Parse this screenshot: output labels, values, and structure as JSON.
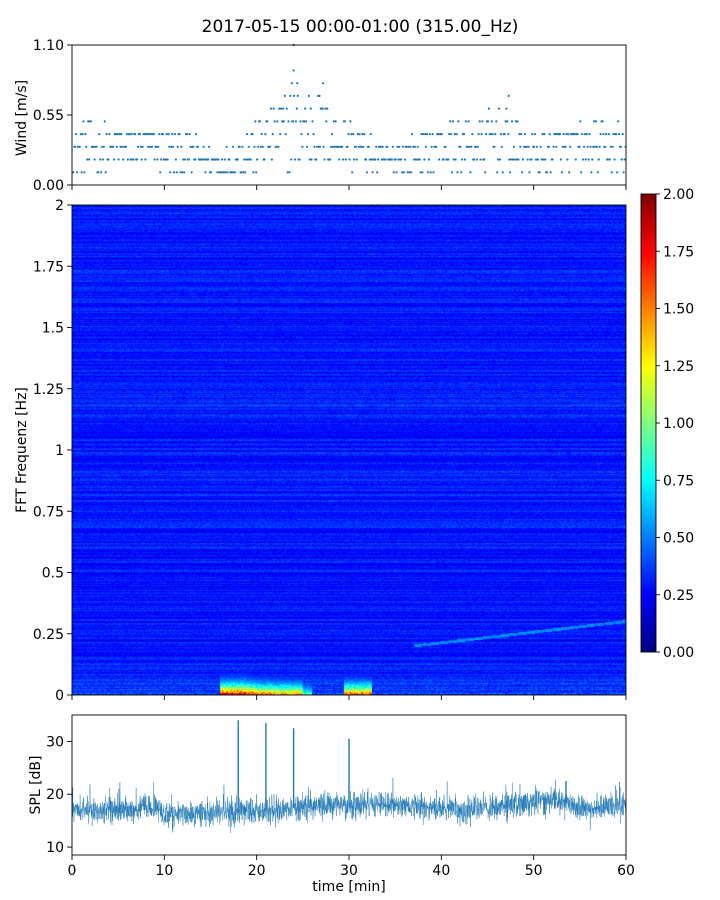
{
  "figure_title": "2017-05-15 00:00-01:00 (315.00_Hz)",
  "chart_data": [
    {
      "type": "scatter",
      "panel": "wind",
      "ylabel": "Wind [m/s]",
      "xlabel": "",
      "xlim": [
        0,
        60
      ],
      "ylim": [
        0,
        1.1
      ],
      "yticks": [
        0.0,
        0.55,
        1.1
      ],
      "ytick_labels": [
        "0.00",
        "0.55",
        "1.10"
      ],
      "xticks": [
        0,
        10,
        20,
        30,
        40,
        50,
        60
      ],
      "quantization": 0.1,
      "point_spacing_min": 0.1,
      "color": "#1f77b4",
      "wind_profile": [
        {
          "x": 0,
          "mean": 0.28,
          "spread": 0.2
        },
        {
          "x": 5,
          "mean": 0.28,
          "spread": 0.18
        },
        {
          "x": 9,
          "mean": 0.3,
          "spread": 0.18
        },
        {
          "x": 11,
          "mean": 0.25,
          "spread": 0.18
        },
        {
          "x": 14,
          "mean": 0.22,
          "spread": 0.12
        },
        {
          "x": 16,
          "mean": 0.15,
          "spread": 0.08
        },
        {
          "x": 18,
          "mean": 0.22,
          "spread": 0.15
        },
        {
          "x": 20,
          "mean": 0.3,
          "spread": 0.2
        },
        {
          "x": 22,
          "mean": 0.38,
          "spread": 0.28
        },
        {
          "x": 24,
          "mean": 0.45,
          "spread": 0.35
        },
        {
          "x": 26,
          "mean": 0.45,
          "spread": 0.32
        },
        {
          "x": 28,
          "mean": 0.38,
          "spread": 0.25
        },
        {
          "x": 31,
          "mean": 0.3,
          "spread": 0.18
        },
        {
          "x": 33,
          "mean": 0.2,
          "spread": 0.1
        },
        {
          "x": 36,
          "mean": 0.22,
          "spread": 0.12
        },
        {
          "x": 40,
          "mean": 0.3,
          "spread": 0.2
        },
        {
          "x": 44,
          "mean": 0.3,
          "spread": 0.22
        },
        {
          "x": 46,
          "mean": 0.4,
          "spread": 0.28
        },
        {
          "x": 48,
          "mean": 0.3,
          "spread": 0.2
        },
        {
          "x": 50,
          "mean": 0.25,
          "spread": 0.15
        },
        {
          "x": 55,
          "mean": 0.28,
          "spread": 0.18
        },
        {
          "x": 60,
          "mean": 0.3,
          "spread": 0.22
        }
      ],
      "wind_peaks": [
        {
          "x": 24.0,
          "y": 1.1
        },
        {
          "x": 24.0,
          "y": 0.9
        },
        {
          "x": 23.8,
          "y": 0.8
        },
        {
          "x": 24.4,
          "y": 0.8
        },
        {
          "x": 26.8,
          "y": 0.7
        },
        {
          "x": 27.2,
          "y": 0.8
        },
        {
          "x": 47.3,
          "y": 0.7
        }
      ]
    },
    {
      "type": "heatmap",
      "panel": "spectrogram",
      "ylabel": "FFT Frequenz [Hz]",
      "xlabel": "",
      "xlim": [
        0,
        60
      ],
      "ylim": [
        0,
        2
      ],
      "yticks": [
        0,
        0.25,
        0.5,
        0.75,
        1,
        1.25,
        1.5,
        1.75,
        2
      ],
      "ytick_labels": [
        "0",
        "0.25",
        "0.5",
        "0.75",
        "1",
        "1.25",
        "1.5",
        "1.75",
        "2"
      ],
      "colormap": "jet",
      "clim": [
        0,
        2
      ],
      "colorbar_ticks": [
        "0.00",
        "0.25",
        "0.50",
        "0.75",
        "1.00",
        "1.25",
        "1.50",
        "1.75",
        "2.00"
      ],
      "background_value": 0.28,
      "hot_region": {
        "x_start": 16,
        "x_end": 32.5,
        "freq_max": 0.3
      },
      "hot_columns": [
        {
          "x_start": 16.0,
          "x_end": 18.8,
          "peak": 2.0
        },
        {
          "x_start": 18.8,
          "x_end": 19.8,
          "peak": 1.9
        },
        {
          "x_start": 19.8,
          "x_end": 21.5,
          "peak": 1.7
        },
        {
          "x_start": 21.5,
          "x_end": 23.0,
          "peak": 1.6
        },
        {
          "x_start": 23.0,
          "x_end": 25.0,
          "peak": 1.6
        },
        {
          "x_start": 25.0,
          "x_end": 26.0,
          "peak": 1.0
        },
        {
          "x_start": 26.0,
          "x_end": 28.0,
          "peak": 0.35
        },
        {
          "x_start": 28.0,
          "x_end": 29.5,
          "peak": 0.4
        },
        {
          "x_start": 29.5,
          "x_end": 32.5,
          "peak": 1.75
        }
      ],
      "line_feature": {
        "x_start": 37,
        "x_end": 60,
        "f_start": 0.2,
        "f_end": 0.3,
        "value": 0.55
      }
    },
    {
      "type": "line",
      "panel": "spl",
      "ylabel": "SPL [dB]",
      "xlabel": "time [min]",
      "xlim": [
        0,
        60
      ],
      "ylim": [
        8.5,
        35
      ],
      "yticks": [
        10,
        20,
        30
      ],
      "ytick_labels": [
        "10",
        "20",
        "30"
      ],
      "xticks": [
        0,
        10,
        20,
        30,
        40,
        50,
        60
      ],
      "xtick_labels": [
        "0",
        "10",
        "20",
        "30",
        "40",
        "50",
        "60"
      ],
      "color": "#1f77b4",
      "spl_baseline": [
        {
          "x": 0,
          "y": 17
        },
        {
          "x": 5,
          "y": 17
        },
        {
          "x": 9,
          "y": 17.5
        },
        {
          "x": 10,
          "y": 16
        },
        {
          "x": 15,
          "y": 16.5
        },
        {
          "x": 18,
          "y": 16.5
        },
        {
          "x": 22,
          "y": 17
        },
        {
          "x": 27,
          "y": 18
        },
        {
          "x": 35,
          "y": 18
        },
        {
          "x": 42,
          "y": 17
        },
        {
          "x": 48,
          "y": 18
        },
        {
          "x": 52,
          "y": 19
        },
        {
          "x": 56,
          "y": 17
        },
        {
          "x": 60,
          "y": 18
        }
      ],
      "noise_spread": 2.2,
      "spl_spikes": [
        {
          "x": 18.0,
          "y": 34
        },
        {
          "x": 21.0,
          "y": 33.5
        },
        {
          "x": 24.0,
          "y": 32.5
        },
        {
          "x": 30.0,
          "y": 30.5
        },
        {
          "x": 53.5,
          "y": 22.5
        }
      ]
    }
  ]
}
